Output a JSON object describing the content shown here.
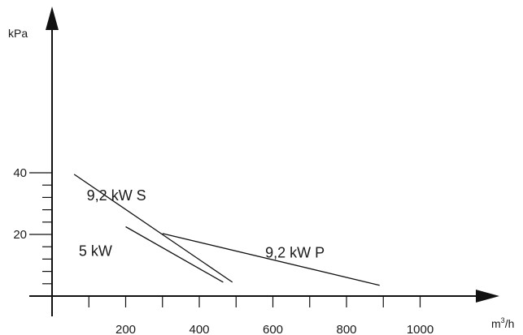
{
  "chart_data": {
    "type": "line",
    "ylabel": "kPa",
    "xlabel_base": "m",
    "xlabel_sup": "3",
    "xlabel_tail": "/h",
    "xlim": [
      0,
      1100
    ],
    "ylim": [
      0,
      45
    ],
    "x_ticks": [
      200,
      400,
      600,
      800,
      1000
    ],
    "x_minor_ticks": [
      100,
      200,
      300,
      400,
      500,
      600,
      700,
      800,
      900,
      1000
    ],
    "y_ticks": [
      20,
      40
    ],
    "y_minor_ticks": [
      4,
      8,
      12,
      16,
      20,
      24,
      28,
      32,
      36,
      40
    ],
    "series": [
      {
        "name": "9,2 kW S",
        "x": [
          60,
          490
        ],
        "y": [
          39.5,
          4.5
        ],
        "label_at": [
          175,
          31
        ]
      },
      {
        "name": "5 kW",
        "x": [
          200,
          465
        ],
        "y": [
          22.5,
          4.5
        ],
        "label_at": [
          118,
          13
        ]
      },
      {
        "name": "9,2 kW P",
        "x": [
          300,
          890
        ],
        "y": [
          20.3,
          3.5
        ],
        "label_at": [
          660,
          12.5
        ]
      }
    ]
  }
}
